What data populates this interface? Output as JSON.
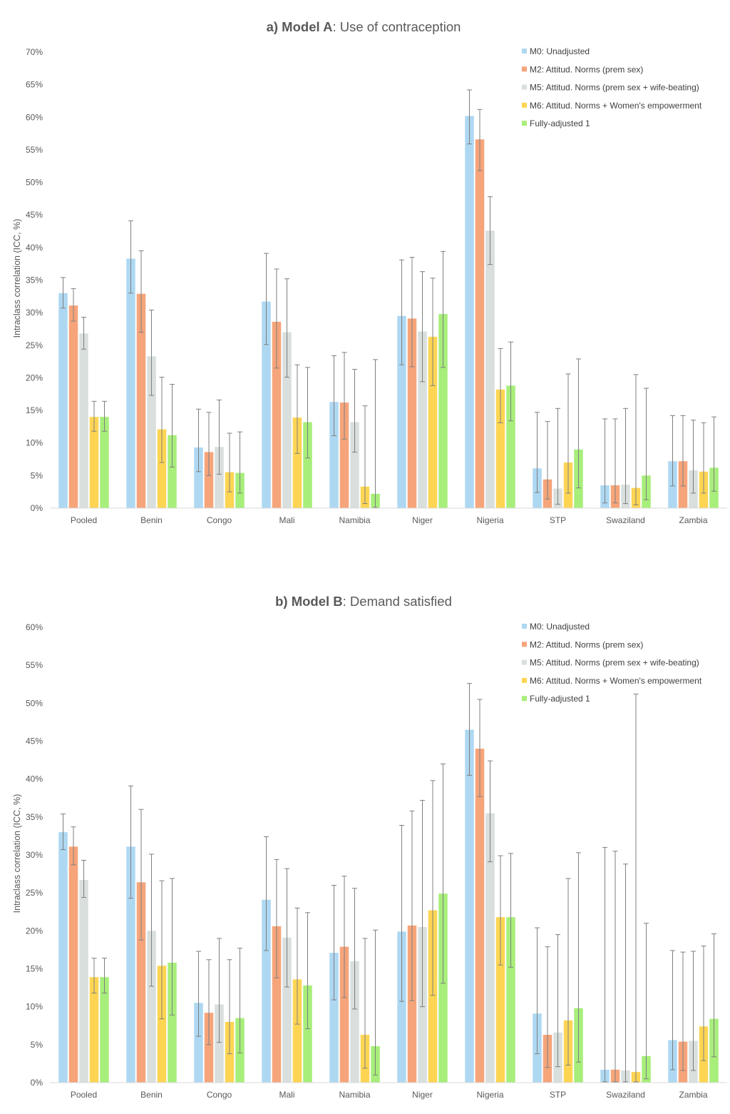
{
  "chart_data": [
    {
      "type": "bar",
      "title_bold": "a) Model A",
      "title_rest": ": Use of contraception",
      "ylabel": "Intraclass correlation (ICC, %)",
      "xlabel": "",
      "ylim": [
        0,
        70
      ],
      "y_ticks": [
        "0%",
        "5%",
        "10%",
        "15%",
        "20%",
        "25%",
        "30%",
        "35%",
        "40%",
        "45%",
        "50%",
        "55%",
        "60%",
        "65%",
        "70%"
      ],
      "legend_position": "top-right",
      "grid": false,
      "categories": [
        "Pooled",
        "Benin",
        "Congo",
        "Mali",
        "Namibia",
        "Niger",
        "Nigeria",
        "STP",
        "Swaziland",
        "Zambia"
      ],
      "series": [
        {
          "name": "M0: Unadjusted",
          "color": "#aed8f2",
          "values": [
            33,
            38.3,
            9.3,
            31.7,
            16.3,
            29.5,
            60.2,
            6.1,
            3.5,
            7.2
          ],
          "err_low": [
            30.7,
            33,
            5.6,
            25.1,
            11.1,
            22,
            55.9,
            2.4,
            0.8,
            3.4
          ],
          "err_high": [
            35.4,
            44.1,
            15.2,
            39.1,
            23.4,
            38.1,
            64.2,
            14.7,
            13.7,
            14.2
          ]
        },
        {
          "name": "M2: Attitud. Norms (prem sex)",
          "color": "#f6a47a",
          "values": [
            31.1,
            32.9,
            8.6,
            28.6,
            16.2,
            29.1,
            56.6,
            4.4,
            3.5,
            7.2
          ],
          "err_low": [
            28.7,
            27,
            5,
            21.5,
            10.6,
            21.7,
            51.8,
            1.4,
            0.8,
            3.4
          ],
          "err_high": [
            33.7,
            39.5,
            14.7,
            36.7,
            23.9,
            38.5,
            61.2,
            13.3,
            13.7,
            14.2
          ]
        },
        {
          "name": "M5: Attitud. Norms (prem sex + wife-beating)",
          "color": "#d9dfdd",
          "values": [
            26.8,
            23.3,
            9.4,
            27,
            13.2,
            27.1,
            42.6,
            3,
            3.6,
            5.8
          ],
          "err_low": [
            24.4,
            17.3,
            5.2,
            20.1,
            8.6,
            19.4,
            37.4,
            0.6,
            0.7,
            2.3
          ],
          "err_high": [
            29.3,
            30.4,
            16.6,
            35.2,
            21.3,
            36.3,
            47.8,
            15.3,
            15.3,
            13.5
          ]
        },
        {
          "name": "M6: Attitud. Norms + Women's empowerment",
          "color": "#fdd553",
          "values": [
            14,
            12.1,
            5.5,
            13.9,
            3.3,
            26.3,
            18.2,
            7,
            3.1,
            5.6
          ],
          "err_low": [
            11.8,
            7,
            2.5,
            8.4,
            0.7,
            18.8,
            13.1,
            2.3,
            0.5,
            2.3
          ],
          "err_high": [
            16.4,
            20.1,
            11.5,
            22,
            15.7,
            35.3,
            24.5,
            20.6,
            20.5,
            13.1
          ]
        },
        {
          "name": "Fully-adjusted 1",
          "color": "#a7ee7a",
          "values": [
            14,
            11.2,
            5.4,
            13.2,
            2.2,
            29.8,
            18.8,
            9,
            5,
            6.2
          ],
          "err_low": [
            11.8,
            6.3,
            2.3,
            7.7,
            0.1,
            21.6,
            13.4,
            3.1,
            1.3,
            2.6
          ],
          "err_high": [
            16.4,
            19,
            11.7,
            21.6,
            22.8,
            39.4,
            25.5,
            22.9,
            18.4,
            14
          ]
        }
      ]
    },
    {
      "type": "bar",
      "title_bold": "b) Model B",
      "title_rest": ": Demand satisfied",
      "ylabel": "Intraclass correlation (ICC, %)",
      "xlabel": "",
      "ylim": [
        0,
        60
      ],
      "y_ticks": [
        "0%",
        "5%",
        "10%",
        "15%",
        "20%",
        "25%",
        "30%",
        "35%",
        "40%",
        "45%",
        "50%",
        "55%",
        "60%"
      ],
      "legend_position": "top-right",
      "grid": false,
      "categories": [
        "Pooled",
        "Benin",
        "Congo",
        "Mali",
        "Namibia",
        "Niger",
        "Nigeria",
        "STP",
        "Swaziland",
        "Zambia"
      ],
      "series": [
        {
          "name": "M0: Unadjusted",
          "color": "#aed8f2",
          "values": [
            33,
            31.1,
            10.5,
            24.1,
            17.1,
            19.9,
            46.5,
            9.1,
            1.7,
            5.6
          ],
          "err_low": [
            30.7,
            24.3,
            6.1,
            17.4,
            10.9,
            10.7,
            40.5,
            3.8,
            0.1,
            1.7
          ],
          "err_high": [
            35.4,
            39.1,
            17.3,
            32.4,
            26,
            33.9,
            52.6,
            20.4,
            31,
            17.4
          ]
        },
        {
          "name": "M2: Attitud. Norms (prem sex)",
          "color": "#f6a47a",
          "values": [
            31.1,
            26.4,
            9.2,
            20.6,
            17.9,
            20.7,
            44,
            6.3,
            1.7,
            5.4
          ],
          "err_low": [
            28.7,
            18.8,
            5,
            13.8,
            11.2,
            10.8,
            37.7,
            2,
            0.1,
            1.6
          ],
          "err_high": [
            33.7,
            36,
            16.2,
            29.4,
            27.2,
            35.8,
            50.5,
            17.9,
            30.5,
            17.2
          ]
        },
        {
          "name": "M5: Attitud. Norms (prem sex + wife-beating)",
          "color": "#d9dfdd",
          "values": [
            26.7,
            20,
            10.3,
            19.1,
            16,
            20.5,
            35.5,
            6.6,
            1.6,
            5.5
          ],
          "err_low": [
            24.4,
            12.7,
            5.3,
            12.6,
            9.7,
            10,
            29.1,
            2.1,
            0.1,
            1.6
          ],
          "err_high": [
            29.3,
            30.1,
            19,
            28.2,
            25.6,
            37.2,
            42.4,
            19.5,
            28.8,
            17.3
          ]
        },
        {
          "name": "M6: Attitud. Norms + Women's empowerment",
          "color": "#fdd553",
          "values": [
            13.9,
            15.4,
            8,
            13.6,
            6.3,
            22.7,
            21.8,
            8.2,
            1.4,
            7.4
          ],
          "err_low": [
            11.8,
            8.4,
            3.8,
            7.7,
            1.9,
            11.5,
            15.5,
            2.3,
            0.1,
            2.9
          ],
          "err_high": [
            16.4,
            26.6,
            16.2,
            23,
            19,
            39.8,
            29.9,
            26.9,
            51.2,
            18
          ]
        },
        {
          "name": "Fully-adjusted 1",
          "color": "#a7ee7a",
          "values": [
            13.9,
            15.8,
            8.5,
            12.8,
            4.8,
            24.9,
            21.8,
            9.8,
            3.5,
            8.4
          ],
          "err_low": [
            11.8,
            8.9,
            3.9,
            7.1,
            1,
            13.1,
            15.2,
            2.7,
            0.5,
            3.4
          ],
          "err_high": [
            16.4,
            26.9,
            17.7,
            22.4,
            20.1,
            42,
            30.2,
            30.3,
            21,
            19.6
          ]
        }
      ]
    }
  ]
}
